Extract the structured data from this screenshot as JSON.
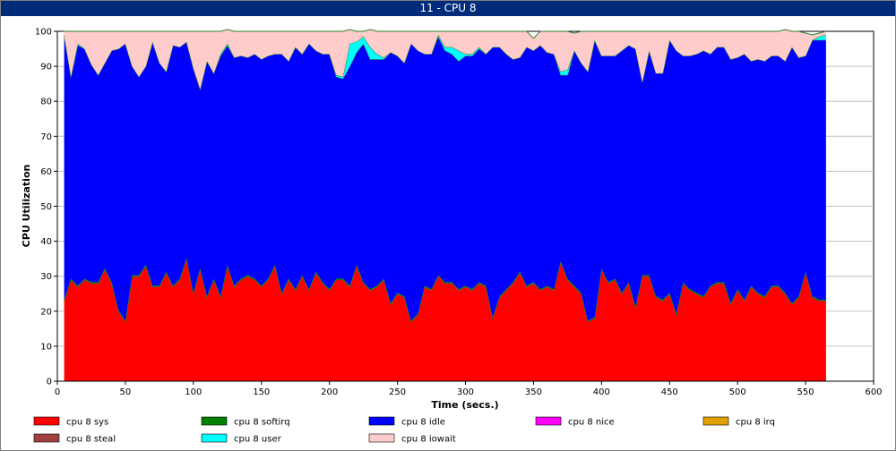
{
  "window": {
    "title": "11 - CPU 8"
  },
  "chart_data": {
    "type": "area",
    "title": "11 - CPU 8",
    "xlabel": "Time (secs.)",
    "ylabel": "CPU Utilization",
    "xlim": [
      0,
      600
    ],
    "ylim": [
      0,
      100
    ],
    "xticks": [
      0,
      50,
      100,
      150,
      200,
      250,
      300,
      350,
      400,
      450,
      500,
      550,
      600
    ],
    "yticks": [
      0,
      10,
      20,
      30,
      40,
      50,
      60,
      70,
      80,
      90,
      100
    ],
    "grid": true,
    "legend_position": "bottom",
    "x": [
      5,
      10,
      15,
      20,
      25,
      30,
      35,
      40,
      45,
      50,
      55,
      60,
      65,
      70,
      75,
      80,
      85,
      90,
      95,
      100,
      105,
      110,
      115,
      120,
      125,
      130,
      135,
      140,
      145,
      150,
      155,
      160,
      165,
      170,
      175,
      180,
      185,
      190,
      195,
      200,
      205,
      210,
      215,
      220,
      225,
      230,
      235,
      240,
      245,
      250,
      255,
      260,
      265,
      270,
      275,
      280,
      285,
      290,
      295,
      300,
      305,
      310,
      315,
      320,
      325,
      330,
      335,
      340,
      345,
      350,
      355,
      360,
      365,
      370,
      375,
      380,
      385,
      390,
      395,
      400,
      405,
      410,
      415,
      420,
      425,
      430,
      435,
      440,
      445,
      450,
      455,
      460,
      465,
      470,
      475,
      480,
      485,
      490,
      495,
      500,
      505,
      510,
      515,
      520,
      525,
      530,
      535,
      540,
      545,
      550,
      555,
      560,
      565
    ],
    "series": [
      {
        "name": "cpu 8 sys",
        "color": "#ff0000",
        "values": [
          23,
          29,
          27,
          29,
          28,
          28,
          32,
          28,
          20,
          17,
          30,
          30,
          33,
          27,
          27,
          31,
          27,
          29,
          35,
          25,
          32,
          24,
          29,
          24,
          33,
          27,
          29,
          30,
          29,
          27,
          29,
          33,
          25,
          29,
          26,
          30,
          26,
          31,
          28,
          26,
          29,
          29,
          27,
          33,
          28,
          26,
          27,
          29,
          22,
          25,
          24,
          17,
          19,
          27,
          26,
          30,
          28,
          28,
          26,
          27,
          26,
          28,
          27,
          18,
          24,
          26,
          28,
          31,
          27,
          28,
          26,
          27,
          26,
          34,
          29,
          27,
          25,
          17,
          18,
          32,
          28,
          29,
          25,
          28,
          21,
          30,
          30,
          24,
          23,
          25,
          19,
          28,
          26,
          25,
          24,
          27,
          28,
          28,
          22,
          26,
          23,
          27,
          25,
          24,
          27,
          27,
          25,
          22,
          24,
          31,
          24,
          23,
          23
        ]
      },
      {
        "name": "cpu 8 softirq",
        "color": "#008000",
        "values": [
          0.3,
          0.3,
          0.3,
          0.3,
          0.3,
          0.3,
          0.3,
          0.3,
          0.3,
          0.3,
          0.3,
          0.3,
          0.3,
          0.3,
          0.3,
          0.3,
          0.3,
          0.3,
          0.3,
          0.3,
          0.3,
          0.3,
          0.3,
          0.3,
          0.3,
          0.3,
          0.3,
          0.3,
          0.3,
          0.3,
          0.3,
          0.3,
          0.3,
          0.3,
          0.3,
          0.3,
          0.3,
          0.3,
          0.3,
          0.3,
          0.3,
          0.3,
          0.3,
          0.3,
          0.3,
          0.3,
          0.3,
          0.3,
          0.3,
          0.3,
          0.3,
          0.3,
          0.3,
          0.3,
          0.3,
          0.3,
          0.3,
          0.3,
          0.3,
          0.3,
          0.3,
          0.3,
          0.3,
          0.3,
          0.3,
          0.3,
          0.3,
          0.3,
          0.3,
          0.3,
          0.3,
          0.3,
          0.3,
          0.3,
          0.3,
          0.3,
          0.3,
          0.3,
          0.3,
          0.3,
          0.3,
          0.3,
          0.3,
          0.3,
          0.3,
          0.3,
          0.3,
          0.3,
          0.3,
          0.3,
          0.3,
          0.3,
          0.3,
          0.3,
          0.3,
          0.3,
          0.3,
          0.3,
          0.3,
          0.3,
          0.3,
          0.3,
          0.3,
          0.3,
          0.3,
          0.3,
          0.3,
          0.3,
          0.3,
          0.3,
          0.3,
          0.3,
          0.3
        ]
      },
      {
        "name": "cpu 8 idle",
        "color": "#0000ff",
        "values": [
          75.7,
          57.7,
          68.7,
          65.7,
          62.2,
          59.2,
          58.7,
          66.2,
          74.7,
          79.2,
          59.7,
          56.7,
          56.7,
          69.7,
          63.7,
          57.2,
          68.7,
          66.2,
          61.7,
          64.2,
          51.2,
          67.2,
          58.7,
          68.7,
          62.7,
          65.2,
          63.7,
          62.2,
          64.2,
          64.7,
          63.7,
          60.2,
          68.2,
          62.2,
          69.2,
          63.2,
          70.2,
          63.2,
          65.2,
          67.2,
          57.7,
          57.2,
          62.7,
          60.7,
          68.2,
          65.7,
          64.7,
          62.7,
          71.7,
          67.7,
          66.7,
          79.2,
          75.2,
          66.2,
          67.2,
          68.2,
          66.2,
          65.2,
          65.2,
          65.7,
          66.7,
          66.7,
          66.2,
          77.2,
          71.2,
          67.2,
          63.7,
          61.2,
          68.2,
          66.2,
          69.7,
          66.7,
          67.2,
          53.2,
          58.2,
          67.2,
          65.7,
          71.2,
          79.2,
          60.7,
          64.7,
          63.7,
          69.2,
          67.7,
          73.7,
          55.2,
          64.2,
          63.7,
          64.7,
          72.2,
          75.2,
          64.7,
          66.7,
          68.2,
          70.2,
          66.2,
          67.2,
          67.2,
          69.7,
          66.2,
          70.2,
          64.2,
          66.7,
          67.2,
          65.7,
          65.7,
          66.2,
          73.2,
          68.2,
          61.7,
          73.2,
          74.2,
          74.2
        ]
      },
      {
        "name": "cpu 8 nice",
        "color": "#ff00ff",
        "values": [
          0,
          0,
          0,
          0,
          0,
          0,
          0,
          0,
          0,
          0,
          0,
          0,
          0,
          0,
          0,
          0,
          0,
          0,
          0,
          0,
          0,
          0,
          0,
          0,
          0,
          0,
          0,
          0,
          0,
          0,
          0,
          0,
          0,
          0,
          0,
          0,
          0,
          0,
          0,
          0,
          0,
          0,
          0,
          0,
          0,
          0,
          0,
          0,
          0,
          0,
          0,
          0,
          0,
          0,
          0,
          0,
          0,
          0,
          0,
          0,
          0,
          0,
          0,
          0,
          0,
          0,
          0,
          0,
          0,
          0,
          0,
          0,
          0,
          0,
          0,
          0,
          0,
          0,
          0,
          0,
          0,
          0,
          0,
          0,
          0,
          0,
          0,
          0,
          0,
          0,
          0,
          0,
          0,
          0,
          0,
          0,
          0,
          0,
          0,
          0,
          0,
          0,
          0,
          0,
          0,
          0,
          0,
          0,
          0,
          0,
          0,
          0,
          0
        ]
      },
      {
        "name": "cpu 8 irq",
        "color": "#e0a000",
        "values": [
          0,
          0,
          0,
          0,
          0,
          0,
          0,
          0,
          0,
          0,
          0,
          0,
          0,
          0,
          0,
          0,
          0,
          0,
          0,
          0,
          0,
          0,
          0,
          0,
          0,
          0,
          0,
          0,
          0,
          0,
          0,
          0,
          0,
          0,
          0,
          0,
          0,
          0,
          0,
          0,
          0,
          0,
          0,
          0,
          0,
          0,
          0,
          0,
          0,
          0,
          0,
          0,
          0,
          0,
          0,
          0,
          0,
          0,
          0,
          0,
          0,
          0,
          0,
          0,
          0,
          0,
          0,
          0,
          0,
          0,
          0,
          0,
          0,
          0,
          0,
          0,
          0,
          0,
          0,
          0,
          0,
          0,
          0,
          0,
          0,
          0,
          0,
          0,
          0,
          0,
          0,
          0,
          0,
          0,
          0,
          0,
          0,
          0,
          0,
          0,
          0,
          0,
          0,
          0,
          0,
          0,
          0,
          0,
          0,
          0,
          0,
          0,
          0
        ]
      },
      {
        "name": "cpu 8 steal",
        "color": "#a04040",
        "values": [
          0,
          0,
          0,
          0,
          0,
          0,
          0,
          0,
          0,
          0,
          0,
          0,
          0,
          0,
          0,
          0,
          0,
          0,
          0,
          0,
          0,
          0,
          0,
          0,
          0,
          0,
          0,
          0,
          0,
          0,
          0,
          0,
          0,
          0,
          0,
          0,
          0,
          0,
          0,
          0,
          0,
          0,
          0,
          0,
          0,
          0,
          0,
          0,
          0,
          0,
          0,
          0,
          0,
          0,
          0,
          0,
          0,
          0,
          0,
          0,
          0,
          0,
          0,
          0,
          0,
          0,
          0,
          0,
          0,
          0,
          0,
          0,
          0,
          0,
          0,
          0,
          0,
          0,
          0,
          0,
          0,
          0,
          0,
          0,
          0,
          0,
          0,
          0,
          0,
          0,
          0,
          0,
          0,
          0,
          0,
          0,
          0,
          0,
          0,
          0,
          0,
          0,
          0,
          0,
          0,
          0,
          0,
          0,
          0,
          0,
          0,
          0,
          0
        ]
      },
      {
        "name": "cpu 8 user",
        "color": "#00ffff",
        "values": [
          0,
          0,
          0.5,
          0,
          0,
          0,
          0,
          0,
          0,
          0,
          0,
          0,
          0,
          0,
          0,
          0,
          0,
          0,
          0,
          0,
          0,
          0,
          0,
          0.5,
          0.5,
          0,
          0,
          0,
          0,
          0,
          0,
          0,
          0,
          0,
          0,
          0,
          0,
          0,
          0,
          0,
          0.5,
          0.5,
          6.5,
          3,
          2,
          3.5,
          1.5,
          0.5,
          0,
          0,
          0,
          0,
          0,
          0,
          0,
          0.5,
          1,
          2,
          3,
          0.5,
          0.5,
          0.5,
          0,
          0,
          0,
          0,
          0,
          0,
          0,
          0,
          0,
          0,
          0,
          1,
          1.5,
          0,
          0,
          0,
          0,
          0,
          0,
          0,
          0,
          0,
          0,
          0,
          0,
          0,
          0,
          0,
          0,
          0,
          0,
          0,
          0,
          0,
          0,
          0,
          0,
          0,
          0,
          0,
          0,
          0,
          0,
          0,
          0,
          0,
          0,
          0,
          0,
          1,
          1.5
        ]
      },
      {
        "name": "cpu 8 iowait",
        "color": "#ffcccc",
        "values": [
          1,
          13,
          3.5,
          5,
          9.5,
          12.5,
          9,
          5.5,
          5,
          3.5,
          10,
          13,
          10,
          3,
          9,
          11.5,
          4,
          4.5,
          3,
          10.5,
          16.5,
          8.5,
          12,
          6.5,
          4,
          7.5,
          7,
          7.5,
          6.5,
          8,
          7,
          6.5,
          6.5,
          8.5,
          4.5,
          6.5,
          3.5,
          5.5,
          6.5,
          6.5,
          12.5,
          13,
          4,
          3,
          1.5,
          5,
          6.5,
          7.5,
          6,
          7,
          9,
          3.5,
          5.5,
          6.5,
          6.5,
          1,
          4.5,
          4.5,
          5.5,
          6.5,
          6.5,
          4.5,
          6.5,
          4.5,
          4.5,
          6.5,
          8,
          7.5,
          4.5,
          3.5,
          4,
          6,
          6.5,
          11.5,
          11,
          5,
          9,
          11.5,
          2.5,
          7,
          7,
          7,
          5.5,
          4,
          5,
          14.5,
          5.5,
          12,
          12,
          2.5,
          5.5,
          7,
          7,
          6.5,
          5.5,
          6.5,
          4.5,
          4.5,
          8,
          7.5,
          6.5,
          8.5,
          8,
          8.5,
          7,
          7,
          9,
          4.5,
          7.5,
          6.5,
          1.5,
          1,
          1
        ]
      }
    ]
  }
}
